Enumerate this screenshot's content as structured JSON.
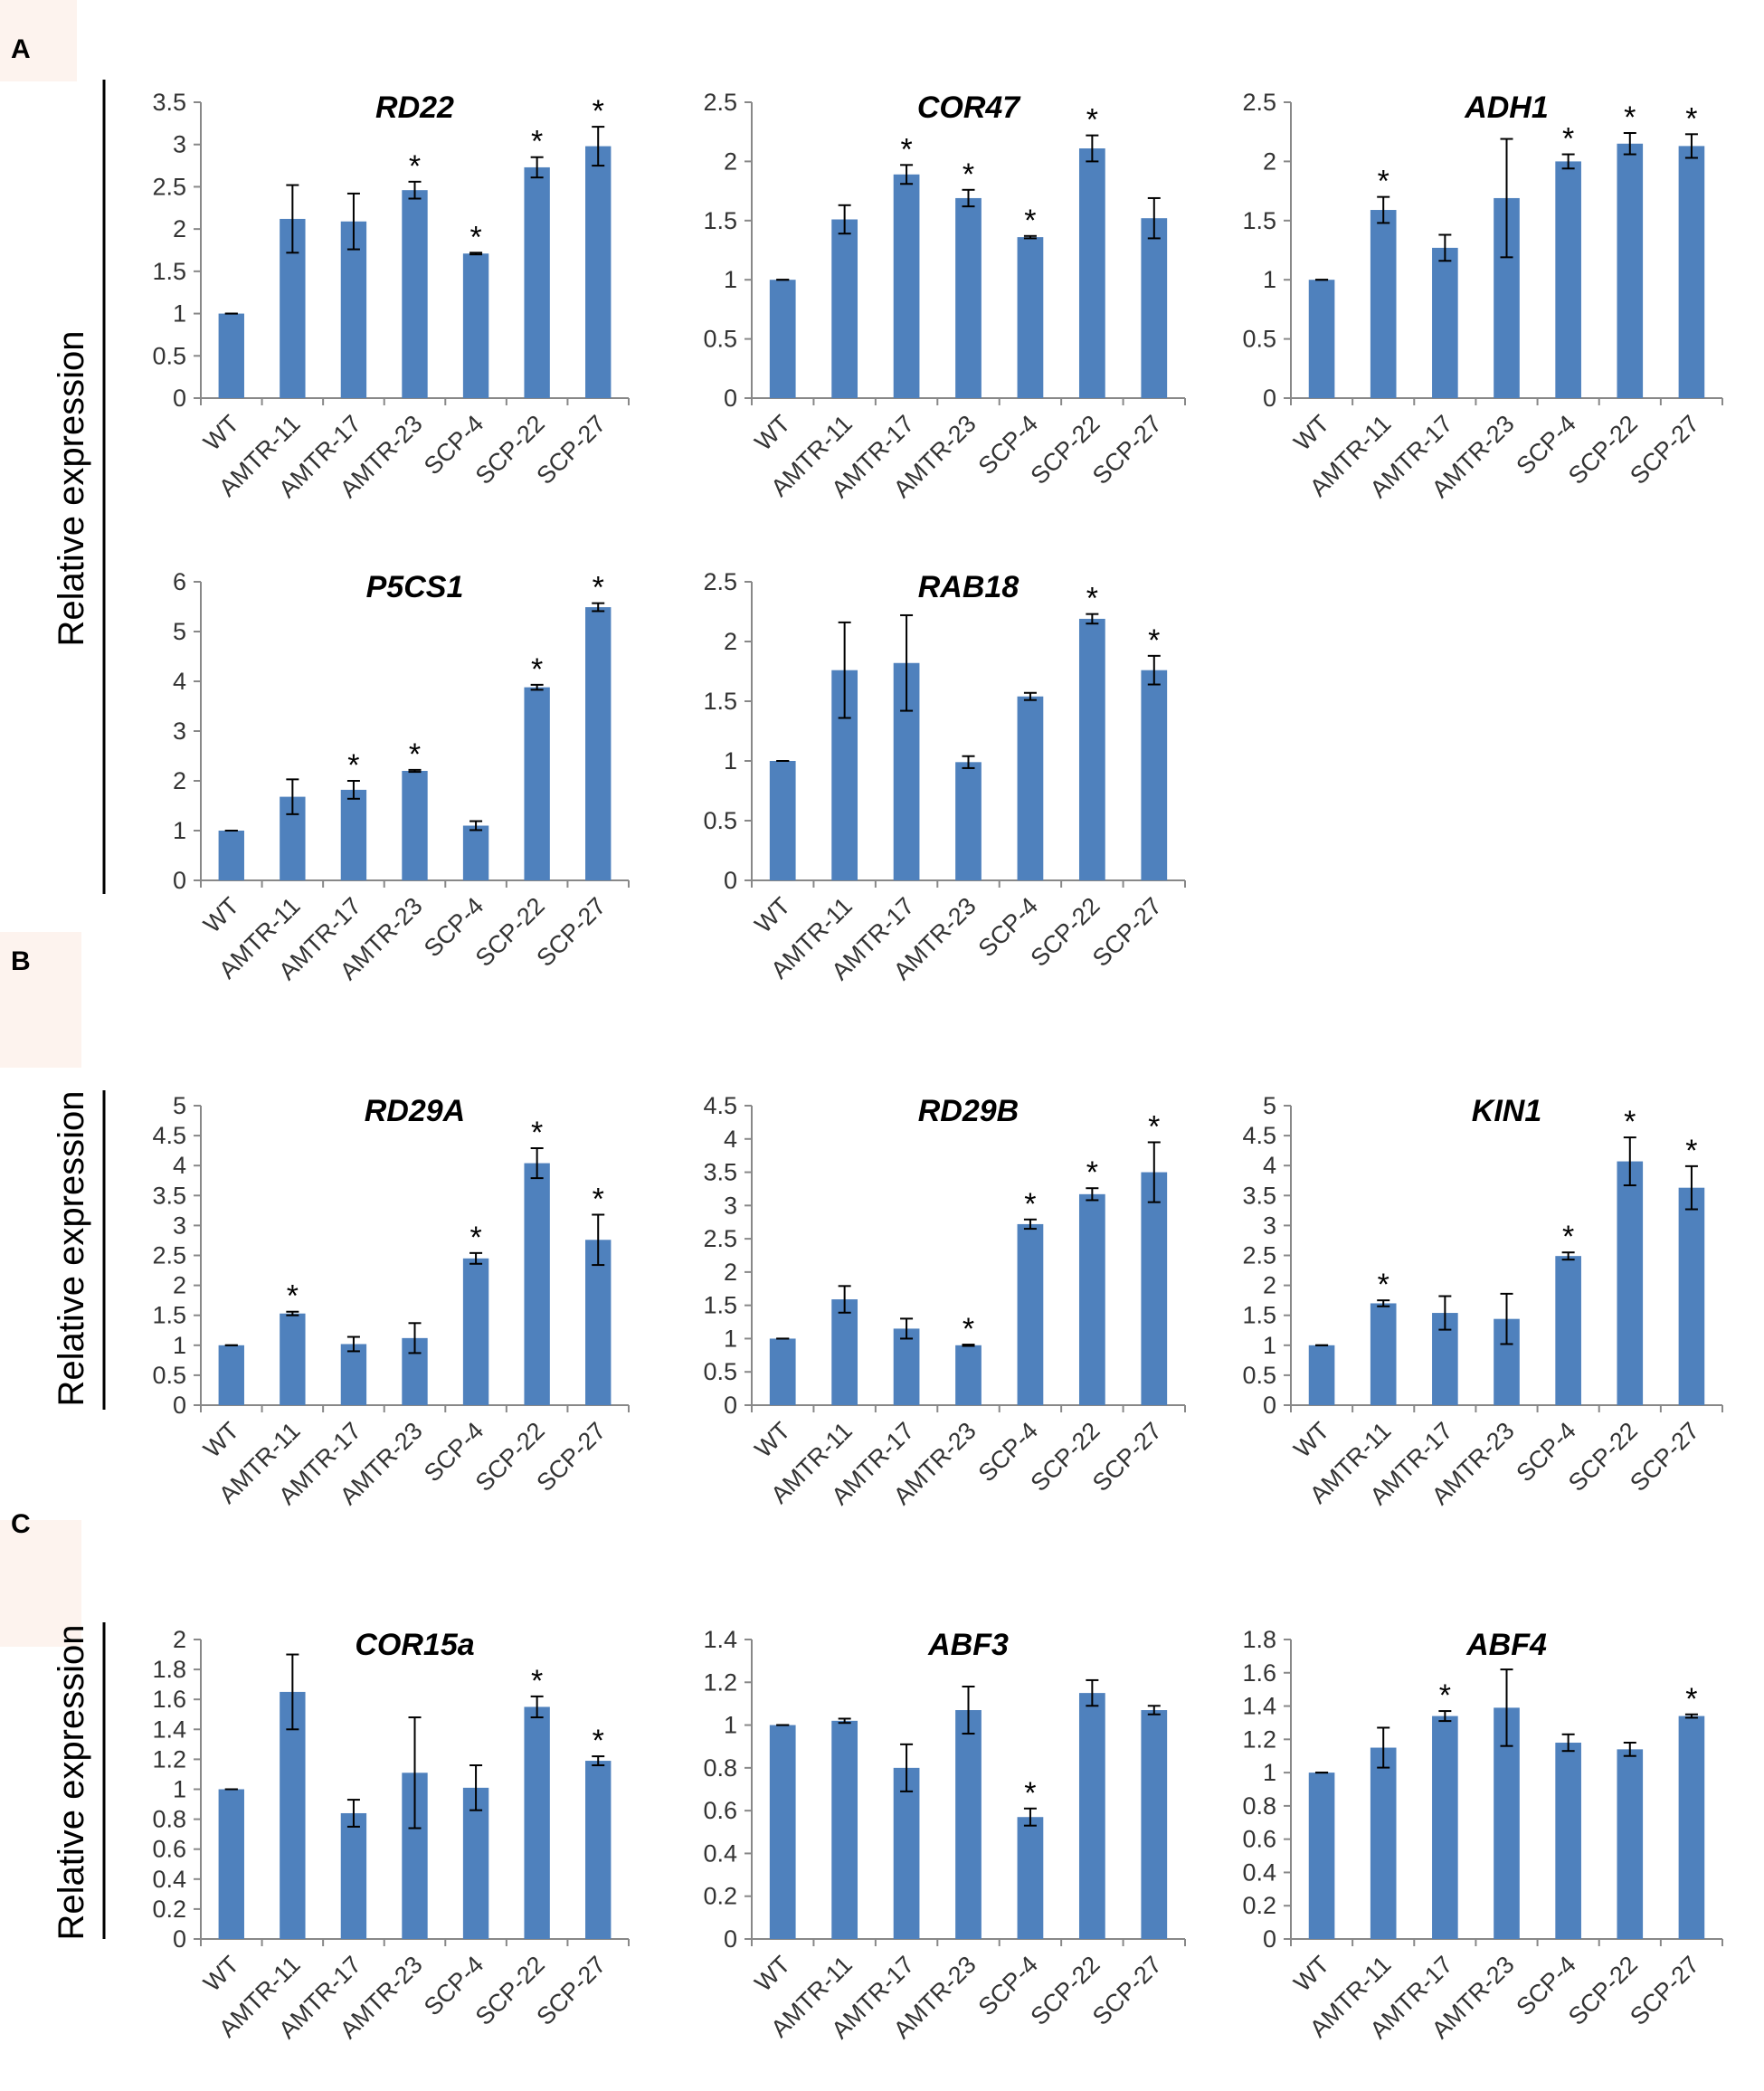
{
  "figure": {
    "panel_labels": [
      "A",
      "B",
      "C"
    ],
    "ylabel": "Relative expression"
  },
  "chart_data": [
    {
      "type": "bar",
      "title": "RD22",
      "panel": "A",
      "categories": [
        "WT",
        "AMTR-11",
        "AMTR-17",
        "AMTR-23",
        "SCP-4",
        "SCP-22",
        "SCP-27"
      ],
      "values": [
        1.0,
        2.12,
        2.09,
        2.46,
        1.71,
        2.73,
        2.98
      ],
      "errors": [
        0.0,
        0.4,
        0.33,
        0.1,
        0.01,
        0.12,
        0.23
      ],
      "significant": [
        false,
        false,
        false,
        true,
        true,
        true,
        true
      ],
      "ylim": [
        0,
        3.5
      ],
      "yticks": [
        0,
        0.5,
        1,
        1.5,
        2,
        2.5,
        3,
        3.5
      ],
      "ytick_labels": [
        "0",
        "0.5",
        "1",
        "1.5",
        "2",
        "2.5",
        "3",
        "3.5"
      ],
      "ylabel": "Relative expression",
      "xlabel": ""
    },
    {
      "type": "bar",
      "title": "COR47",
      "panel": "A",
      "categories": [
        "WT",
        "AMTR-11",
        "AMTR-17",
        "AMTR-23",
        "SCP-4",
        "SCP-22",
        "SCP-27"
      ],
      "values": [
        1.0,
        1.51,
        1.89,
        1.69,
        1.36,
        2.11,
        1.52
      ],
      "errors": [
        0.0,
        0.12,
        0.08,
        0.07,
        0.01,
        0.11,
        0.17
      ],
      "significant": [
        false,
        false,
        true,
        true,
        true,
        true,
        false
      ],
      "ylim": [
        0,
        2.5
      ],
      "yticks": [
        0,
        0.5,
        1,
        1.5,
        2,
        2.5
      ],
      "ytick_labels": [
        "0",
        "0.5",
        "1",
        "1.5",
        "2",
        "2.5"
      ],
      "ylabel": "Relative expression",
      "xlabel": ""
    },
    {
      "type": "bar",
      "title": "ADH1",
      "panel": "A",
      "categories": [
        "WT",
        "AMTR-11",
        "AMTR-17",
        "AMTR-23",
        "SCP-4",
        "SCP-22",
        "SCP-27"
      ],
      "values": [
        1.0,
        1.59,
        1.27,
        1.69,
        2.0,
        2.15,
        2.13
      ],
      "errors": [
        0.0,
        0.11,
        0.11,
        0.5,
        0.06,
        0.09,
        0.1
      ],
      "significant": [
        false,
        true,
        false,
        false,
        true,
        true,
        true
      ],
      "ylim": [
        0,
        2.5
      ],
      "yticks": [
        0,
        0.5,
        1,
        1.5,
        2,
        2.5
      ],
      "ytick_labels": [
        "0",
        "0.5",
        "1",
        "1.5",
        "2",
        "2.5"
      ],
      "ylabel": "Relative expression",
      "xlabel": ""
    },
    {
      "type": "bar",
      "title": "P5CS1",
      "panel": "A",
      "categories": [
        "WT",
        "AMTR-11",
        "AMTR-17",
        "AMTR-23",
        "SCP-4",
        "SCP-22",
        "SCP-27"
      ],
      "values": [
        1.0,
        1.68,
        1.82,
        2.2,
        1.1,
        3.88,
        5.49
      ],
      "errors": [
        0.0,
        0.35,
        0.18,
        0.02,
        0.09,
        0.05,
        0.08
      ],
      "significant": [
        false,
        false,
        true,
        true,
        false,
        true,
        true
      ],
      "ylim": [
        0,
        6
      ],
      "yticks": [
        0,
        1,
        2,
        3,
        4,
        5,
        6
      ],
      "ytick_labels": [
        "0",
        "1",
        "2",
        "3",
        "4",
        "5",
        "6"
      ],
      "ylabel": "Relative expression",
      "xlabel": ""
    },
    {
      "type": "bar",
      "title": "RAB18",
      "panel": "A",
      "categories": [
        "WT",
        "AMTR-11",
        "AMTR-17",
        "AMTR-23",
        "SCP-4",
        "SCP-22",
        "SCP-27"
      ],
      "values": [
        1.0,
        1.76,
        1.82,
        0.99,
        1.54,
        2.19,
        1.76
      ],
      "errors": [
        0.0,
        0.4,
        0.4,
        0.05,
        0.03,
        0.04,
        0.12
      ],
      "significant": [
        false,
        false,
        false,
        false,
        false,
        true,
        true
      ],
      "ylim": [
        0,
        2.5
      ],
      "yticks": [
        0,
        0.5,
        1,
        1.5,
        2,
        2.5
      ],
      "ytick_labels": [
        "0",
        "0.5",
        "1",
        "1.5",
        "2",
        "2.5"
      ],
      "ylabel": "Relative expression",
      "xlabel": ""
    },
    {
      "type": "bar",
      "title": "RD29A",
      "panel": "B",
      "categories": [
        "WT",
        "AMTR-11",
        "AMTR-17",
        "AMTR-23",
        "SCP-4",
        "SCP-22",
        "SCP-27"
      ],
      "values": [
        1.0,
        1.53,
        1.02,
        1.12,
        2.45,
        4.04,
        2.76
      ],
      "errors": [
        0.0,
        0.03,
        0.12,
        0.25,
        0.09,
        0.25,
        0.42
      ],
      "significant": [
        false,
        true,
        false,
        false,
        true,
        true,
        true
      ],
      "ylim": [
        0,
        5
      ],
      "yticks": [
        0,
        0.5,
        1,
        1.5,
        2,
        2.5,
        3,
        3.5,
        4,
        4.5,
        5
      ],
      "ytick_labels": [
        "0",
        "0.5",
        "1",
        "1.5",
        "2",
        "2.5",
        "3",
        "3.5",
        "4",
        "4.5",
        "5"
      ],
      "ylabel": "Relative expression",
      "xlabel": ""
    },
    {
      "type": "bar",
      "title": "RD29B",
      "panel": "B",
      "categories": [
        "WT",
        "AMTR-11",
        "AMTR-17",
        "AMTR-23",
        "SCP-4",
        "SCP-22",
        "SCP-27"
      ],
      "values": [
        1.0,
        1.59,
        1.15,
        0.9,
        2.72,
        3.17,
        3.5
      ],
      "errors": [
        0.0,
        0.2,
        0.15,
        0.01,
        0.07,
        0.09,
        0.45
      ],
      "significant": [
        false,
        false,
        false,
        true,
        true,
        true,
        true
      ],
      "ylim": [
        0,
        4.5
      ],
      "yticks": [
        0,
        0.5,
        1,
        1.5,
        2,
        2.5,
        3,
        3.5,
        4,
        4.5
      ],
      "ytick_labels": [
        "0",
        "0.5",
        "1",
        "1.5",
        "2",
        "2.5",
        "3",
        "3.5",
        "4",
        "4.5"
      ],
      "ylabel": "Relative expression",
      "xlabel": ""
    },
    {
      "type": "bar",
      "title": "KIN1",
      "panel": "B",
      "categories": [
        "WT",
        "AMTR-11",
        "AMTR-17",
        "AMTR-23",
        "SCP-4",
        "SCP-22",
        "SCP-27"
      ],
      "values": [
        1.0,
        1.7,
        1.54,
        1.44,
        2.49,
        4.07,
        3.63
      ],
      "errors": [
        0.0,
        0.05,
        0.28,
        0.42,
        0.06,
        0.4,
        0.36
      ],
      "significant": [
        false,
        true,
        false,
        false,
        true,
        true,
        true
      ],
      "ylim": [
        0,
        5
      ],
      "yticks": [
        0,
        0.5,
        1,
        1.5,
        2,
        2.5,
        3,
        3.5,
        4,
        4.5,
        5
      ],
      "ytick_labels": [
        "0",
        "0.5",
        "1",
        "1.5",
        "2",
        "2.5",
        "3",
        "3.5",
        "4",
        "4.5",
        "5"
      ],
      "ylabel": "Relative expression",
      "xlabel": ""
    },
    {
      "type": "bar",
      "title": "COR15a",
      "panel": "C",
      "categories": [
        "WT",
        "AMTR-11",
        "AMTR-17",
        "AMTR-23",
        "SCP-4",
        "SCP-22",
        "SCP-27"
      ],
      "values": [
        1.0,
        1.65,
        0.84,
        1.11,
        1.01,
        1.55,
        1.19
      ],
      "errors": [
        0.0,
        0.25,
        0.09,
        0.37,
        0.15,
        0.07,
        0.03
      ],
      "significant": [
        false,
        false,
        false,
        false,
        false,
        true,
        true
      ],
      "ylim": [
        0,
        2
      ],
      "yticks": [
        0,
        0.2,
        0.4,
        0.6,
        0.8,
        1,
        1.2,
        1.4,
        1.6,
        1.8,
        2
      ],
      "ytick_labels": [
        "0",
        "0.2",
        "0.4",
        "0.6",
        "0.8",
        "1",
        "1.2",
        "1.4",
        "1.6",
        "1.8",
        "2"
      ],
      "ylabel": "Relative expression",
      "xlabel": ""
    },
    {
      "type": "bar",
      "title": "ABF3",
      "panel": "C",
      "categories": [
        "WT",
        "AMTR-11",
        "AMTR-17",
        "AMTR-23",
        "SCP-4",
        "SCP-22",
        "SCP-27"
      ],
      "values": [
        1.0,
        1.02,
        0.8,
        1.07,
        0.57,
        1.15,
        1.07
      ],
      "errors": [
        0.0,
        0.01,
        0.11,
        0.11,
        0.04,
        0.06,
        0.02
      ],
      "significant": [
        false,
        false,
        false,
        false,
        true,
        false,
        false
      ],
      "ylim": [
        0,
        1.4
      ],
      "yticks": [
        0,
        0.2,
        0.4,
        0.6,
        0.8,
        1,
        1.2,
        1.4
      ],
      "ytick_labels": [
        "0",
        "0.2",
        "0.4",
        "0.6",
        "0.8",
        "1",
        "1.2",
        "1.4"
      ],
      "ylabel": "Relative expression",
      "xlabel": ""
    },
    {
      "type": "bar",
      "title": "ABF4",
      "panel": "C",
      "categories": [
        "WT",
        "AMTR-11",
        "AMTR-17",
        "AMTR-23",
        "SCP-4",
        "SCP-22",
        "SCP-27"
      ],
      "values": [
        1.0,
        1.15,
        1.34,
        1.39,
        1.18,
        1.14,
        1.34
      ],
      "errors": [
        0.0,
        0.12,
        0.03,
        0.23,
        0.05,
        0.04,
        0.01
      ],
      "significant": [
        false,
        false,
        true,
        false,
        false,
        false,
        true
      ],
      "ylim": [
        0,
        1.8
      ],
      "yticks": [
        0,
        0.2,
        0.4,
        0.6,
        0.8,
        1,
        1.2,
        1.4,
        1.6,
        1.8
      ],
      "ytick_labels": [
        "0",
        "0.2",
        "0.4",
        "0.6",
        "0.8",
        "1",
        "1.2",
        "1.4",
        "1.6",
        "1.8"
      ],
      "ylabel": "Relative expression",
      "xlabel": ""
    }
  ]
}
